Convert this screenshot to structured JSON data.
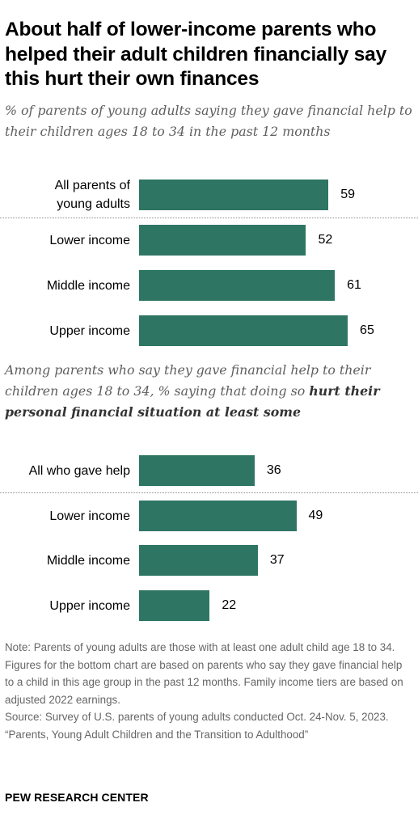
{
  "title": "About half of lower-income parents who helped their adult children financially say this hurt their own finances",
  "subtitle": "% of parents of young adults saying they gave financial help to their children ages 18 to 34 in the past 12 months",
  "subtitle2_plain": "Among parents who say they gave financial help to their children ages 18 to 34, % saying that doing so ",
  "subtitle2_bold": "hurt their personal financial situation at least some",
  "chart_data": [
    {
      "type": "bar",
      "orientation": "horizontal",
      "categories": [
        "All parents of young adults",
        "Lower income",
        "Middle income",
        "Upper income"
      ],
      "values": [
        59,
        52,
        61,
        65
      ],
      "title": "% of parents of young adults saying they gave financial help to their children ages 18 to 34 in the past 12 months",
      "color": "#2e7563"
    },
    {
      "type": "bar",
      "orientation": "horizontal",
      "categories": [
        "All who gave help",
        "Lower income",
        "Middle income",
        "Upper income"
      ],
      "values": [
        36,
        49,
        37,
        22
      ],
      "title": "Among parents who say they gave financial help to their children ages 18 to 34, % saying that doing so hurt their personal financial situation at least some",
      "color": "#2e7563"
    }
  ],
  "notes": {
    "note": "Note: Parents of young adults are those with at least one adult child age 18 to 34. Figures for the bottom chart are based on parents who say they gave financial help to a child in this age group in the past 12 months. Family income tiers are based on adjusted 2022 earnings.",
    "source": "Source: Survey of U.S. parents of young adults conducted Oct. 24-Nov. 5, 2023.",
    "report": "“Parents, Young Adult Children and the Transition to Adulthood”"
  },
  "footer": "PEW RESEARCH CENTER"
}
